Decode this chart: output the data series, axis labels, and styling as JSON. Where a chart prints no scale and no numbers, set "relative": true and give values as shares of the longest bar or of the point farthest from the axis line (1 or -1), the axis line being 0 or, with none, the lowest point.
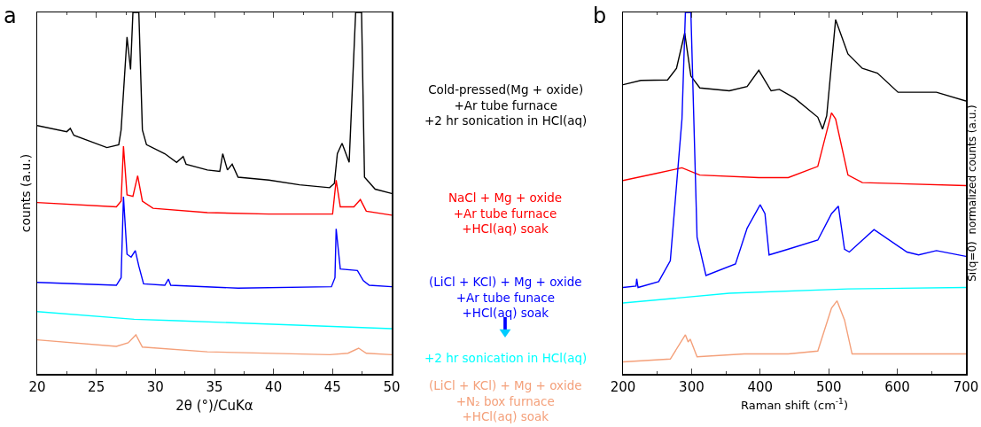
{
  "chart_data": [
    {
      "type": "line",
      "relative": true,
      "xlabel": "2θ (°)/CuKα",
      "ylabel": "counts (a.u.)",
      "xlim": [
        20,
        50
      ],
      "xticks": [
        20,
        25,
        30,
        35,
        40,
        45,
        50
      ],
      "grid": false,
      "legend": "right",
      "annotations": [
        "a"
      ],
      "series": [
        {
          "name": "Cold-pressed(Mg + oxide)\n+Ar tube furnace\n+2 hr sonication in HCl(aq)",
          "color": "#000000",
          "x": [
            20,
            22.5,
            22.8,
            23.1,
            25.9,
            26.9,
            27.1,
            27.6,
            27.9,
            28.1,
            28.6,
            28.9,
            29.25,
            30.8,
            31.8,
            32.35,
            32.6,
            34.4,
            35.45,
            35.7,
            36.1,
            36.5,
            37.0,
            39.6,
            42.2,
            44.75,
            45.15,
            45.4,
            45.8,
            46.4,
            46.95,
            47.45,
            47.7,
            48.6,
            50
          ],
          "values": [
            0.687,
            0.67,
            0.679,
            0.66,
            0.626,
            0.634,
            0.675,
            0.932,
            0.842,
            1,
            1,
            0.675,
            0.634,
            0.609,
            0.585,
            0.601,
            0.58,
            0.564,
            0.56,
            0.609,
            0.564,
            0.58,
            0.544,
            0.536,
            0.523,
            0.515,
            0.527,
            0.609,
            0.638,
            0.585,
            1,
            1,
            0.544,
            0.511,
            0.499
          ]
        },
        {
          "name": "NaCl + Mg + oxide\n+Ar tube furnace\n+HCl(aq) soak",
          "color": "#ff0000",
          "x": [
            20,
            26.7,
            27.1,
            27.3,
            27.6,
            28.1,
            28.5,
            28.9,
            29.8,
            34.4,
            39.6,
            45.0,
            45.3,
            45.65,
            46.8,
            47.35,
            47.85,
            50
          ],
          "values": [
            0.474,
            0.462,
            0.478,
            0.63,
            0.495,
            0.491,
            0.548,
            0.478,
            0.458,
            0.446,
            0.442,
            0.442,
            0.536,
            0.462,
            0.462,
            0.482,
            0.45,
            0.439
          ]
        },
        {
          "name": "(LiCl + KCl) + Mg + oxide\n+Ar tube funace\n+HCl(aq) soak",
          "color": "#0000ff",
          "x": [
            20,
            26.7,
            27.1,
            27.3,
            27.6,
            27.95,
            28.3,
            28.6,
            29,
            30.8,
            31.1,
            31.3,
            37,
            44.9,
            45.2,
            45.3,
            45.65,
            47.1,
            47.6,
            48.1,
            50
          ],
          "values": [
            0.253,
            0.245,
            0.266,
            0.49,
            0.331,
            0.323,
            0.341,
            0.298,
            0.249,
            0.245,
            0.262,
            0.245,
            0.237,
            0.241,
            0.266,
            0.401,
            0.29,
            0.286,
            0.258,
            0.245,
            0.241
          ]
        },
        {
          "name": "+2 hr sonication in HCl(aq)",
          "color": "#00ffff",
          "x": [
            20,
            28.2,
            31.8,
            50
          ],
          "values": [
            0.172,
            0.151,
            0.147,
            0.125
          ]
        },
        {
          "name": "(LiCl + KCl) + Mg + oxide\n+N₂ box furnace\n+HCl(aq) soak",
          "color": "#f4a07a",
          "x": [
            20,
            26.7,
            27.7,
            28.35,
            28.9,
            34.4,
            44.75,
            46.3,
            47.2,
            47.85,
            50
          ],
          "values": [
            0.094,
            0.076,
            0.086,
            0.108,
            0.074,
            0.061,
            0.053,
            0.057,
            0.071,
            0.057,
            0.053
          ]
        }
      ]
    },
    {
      "type": "line",
      "relative": true,
      "xlabel": "Raman shift (cm$^{-1}$)",
      "ylabel": "Si(q=0)  normalized counts (a.u.)",
      "xlim": [
        200,
        700
      ],
      "xticks": [
        200,
        300,
        400,
        500,
        600,
        700
      ],
      "grid": false,
      "annotations": [
        "b"
      ],
      "series": [
        {
          "color": "#000000",
          "x": [
            200,
            226,
            265,
            278,
            290,
            299,
            312,
            355,
            381,
            398,
            416,
            428,
            450,
            484,
            491,
            497,
            510,
            528,
            549,
            571,
            601,
            657,
            700
          ],
          "values": [
            0.8,
            0.812,
            0.813,
            0.845,
            0.943,
            0.824,
            0.791,
            0.783,
            0.795,
            0.84,
            0.783,
            0.787,
            0.763,
            0.71,
            0.677,
            0.714,
            0.98,
            0.885,
            0.845,
            0.832,
            0.779,
            0.779,
            0.755
          ]
        },
        {
          "color": "#ff0000",
          "x": [
            200,
            247,
            286,
            312,
            398,
            441,
            484,
            504,
            510,
            528,
            549,
            700
          ],
          "values": [
            0.535,
            0.554,
            0.57,
            0.55,
            0.543,
            0.543,
            0.574,
            0.722,
            0.705,
            0.55,
            0.529,
            0.521
          ]
        },
        {
          "color": "#0000ff",
          "x": [
            200,
            219,
            220,
            222,
            252,
            269,
            286,
            291,
            299,
            308,
            321,
            364,
            381,
            400,
            407,
            413,
            441,
            484,
            504,
            514,
            523,
            530,
            566,
            614,
            631,
            657,
            700
          ],
          "values": [
            0.239,
            0.243,
            0.263,
            0.239,
            0.255,
            0.313,
            0.705,
            1,
            1,
            0.378,
            0.272,
            0.304,
            0.403,
            0.468,
            0.443,
            0.329,
            0.345,
            0.37,
            0.443,
            0.464,
            0.345,
            0.337,
            0.399,
            0.337,
            0.329,
            0.341,
            0.325
          ]
        },
        {
          "color": "#00ffff",
          "x": [
            200,
            355,
            528,
            700
          ],
          "values": [
            0.196,
            0.223,
            0.235,
            0.239
          ]
        },
        {
          "color": "#f4a07a",
          "x": [
            200,
            269,
            291,
            295,
            298,
            308,
            377,
            385,
            441,
            484,
            504,
            512,
            523,
            534,
            700
          ],
          "values": [
            0.033,
            0.041,
            0.108,
            0.088,
            0.096,
            0.047,
            0.055,
            0.055,
            0.055,
            0.063,
            0.182,
            0.202,
            0.149,
            0.055,
            0.055
          ]
        }
      ]
    }
  ]
}
